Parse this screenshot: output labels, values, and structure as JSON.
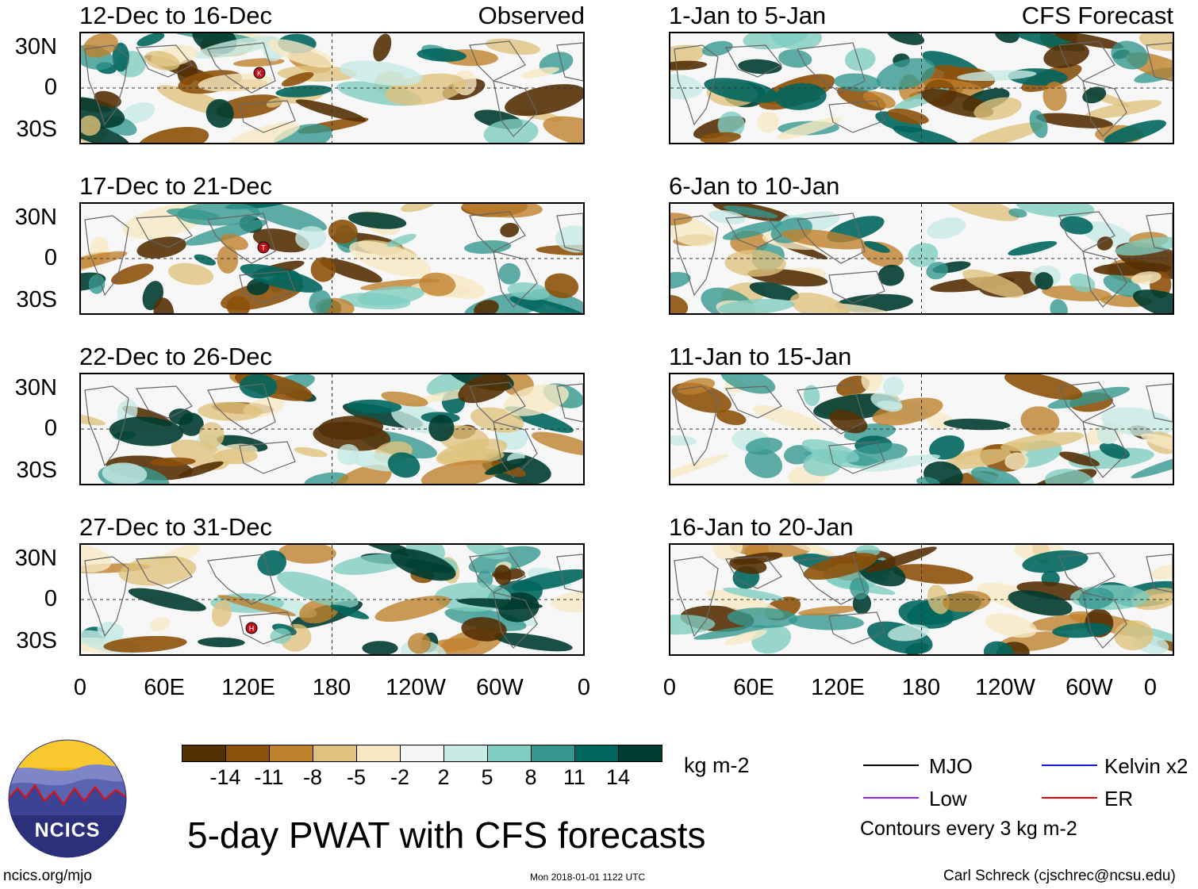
{
  "panels": [
    {
      "id": "p1",
      "title": "12-Dec to 16-Dec",
      "tag": "Observed"
    },
    {
      "id": "p2",
      "title": "17-Dec to 21-Dec",
      "tag": ""
    },
    {
      "id": "p3",
      "title": "22-Dec to 26-Dec",
      "tag": ""
    },
    {
      "id": "p4",
      "title": "27-Dec to 31-Dec",
      "tag": ""
    },
    {
      "id": "p5",
      "title": "1-Jan to 5-Jan",
      "tag": "CFS Forecast"
    },
    {
      "id": "p6",
      "title": "6-Jan to 10-Jan",
      "tag": ""
    },
    {
      "id": "p7",
      "title": "11-Jan to 15-Jan",
      "tag": ""
    },
    {
      "id": "p8",
      "title": "16-Jan to 20-Jan",
      "tag": ""
    }
  ],
  "y_axis": [
    "30N",
    "0",
    "30S"
  ],
  "x_axis": [
    "0",
    "60E",
    "120E",
    "180",
    "120W",
    "60W",
    "0"
  ],
  "storms": [
    {
      "panel": "p1",
      "label": "K"
    },
    {
      "panel": "p2",
      "label": "T"
    },
    {
      "panel": "p4",
      "label": "H"
    }
  ],
  "colorbar": {
    "colors": [
      "#543005",
      "#8c510a",
      "#bf812d",
      "#dfc27d",
      "#f6e8c3",
      "#f5f5f5",
      "#c7eae5",
      "#80cdc1",
      "#35978f",
      "#01665e",
      "#003c30"
    ],
    "ticks": [
      "-14",
      "-11",
      "-8",
      "-5",
      "-2",
      "2",
      "5",
      "8",
      "11",
      "14"
    ],
    "units": "kg m-2"
  },
  "legend": {
    "items": [
      {
        "label": "MJO",
        "color": "#000000"
      },
      {
        "label": "Kelvin x2",
        "color": "#1a1adc"
      },
      {
        "label": "Low",
        "color": "#a020f0"
      },
      {
        "label": "ER",
        "color": "#e00000"
      }
    ],
    "note": "Contours every 3 kg m-2"
  },
  "title": "5-day PWAT with CFS forecasts",
  "logo_text": "NCICS",
  "footer": {
    "url": "ncics.org/mjo",
    "timestamp": "Mon 2018-01-01 1122 UTC",
    "author": "Carl Schreck (cjschrec@ncsu.edu)"
  }
}
